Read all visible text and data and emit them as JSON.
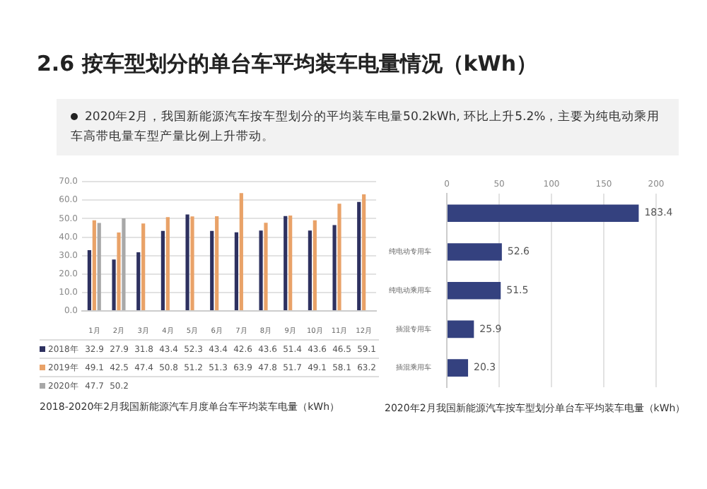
{
  "chart_data": [
    {
      "type": "bar",
      "title": "2018-2020年2月我国新能源汽车月度单台车平均装车电量（kWh）",
      "annotations": [
        "2.6 按车型划分的单台车平均装车电量情况（kWh）",
        "2020年2月，我国新能源汽车按车型划分的平均装车电量50.2kWh, 环比上升5.2%，主要为纯电动乘用车高带电量车型产量比例上升带动。"
      ],
      "categories": [
        "1月",
        "2月",
        "3月",
        "4月",
        "5月",
        "6月",
        "7月",
        "8月",
        "9月",
        "10月",
        "11月",
        "12月"
      ],
      "series": [
        {
          "name": "2018年",
          "color": "#2e3160",
          "values": [
            32.9,
            27.9,
            31.8,
            43.4,
            52.3,
            43.4,
            42.6,
            43.6,
            51.4,
            43.6,
            46.5,
            59.1
          ]
        },
        {
          "name": "2019年",
          "color": "#e9a268",
          "values": [
            49.1,
            42.5,
            47.4,
            50.8,
            51.2,
            51.3,
            63.9,
            47.8,
            51.7,
            49.1,
            58.1,
            63.2
          ]
        },
        {
          "name": "2020年",
          "color": "#a8a8a8",
          "values": [
            47.7,
            50.2,
            null,
            null,
            null,
            null,
            null,
            null,
            null,
            null,
            null,
            null
          ]
        }
      ],
      "ylim": [
        0,
        70
      ],
      "yticks": [
        {
          "value": 0,
          "label": "0.0"
        },
        {
          "value": 10,
          "label": "10.0"
        },
        {
          "value": 20,
          "label": "20.0"
        },
        {
          "value": 30,
          "label": "30.0"
        },
        {
          "value": 40,
          "label": "40.0"
        },
        {
          "value": 50,
          "label": "50.0"
        },
        {
          "value": 60,
          "label": "60.0"
        },
        {
          "value": 70,
          "label": "70.0"
        }
      ],
      "grid": "y",
      "legend": "bottom",
      "data_labels": true
    },
    {
      "type": "bar",
      "orientation": "horizontal",
      "title": "2020年2月我国新能源汽车按车型划分单台车平均装车电量（kWh）",
      "categories": [
        null,
        "纯电动专用车",
        "纯电动乘用车",
        "插混专用车",
        "插混乘用车"
      ],
      "values": [
        183.4,
        52.6,
        51.5,
        25.9,
        20.3
      ],
      "color": "#34417f",
      "xlim": [
        0,
        200
      ],
      "xticks": [
        0,
        50,
        100,
        150,
        200
      ],
      "grid": "x",
      "data_labels": true
    }
  ]
}
